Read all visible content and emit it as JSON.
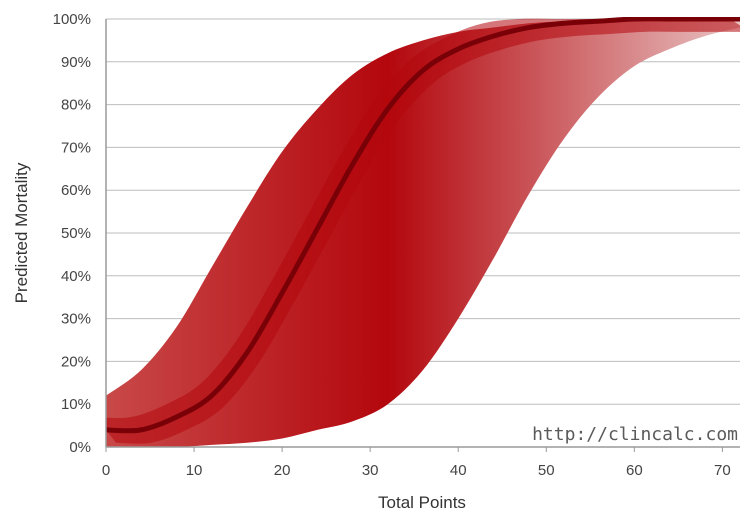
{
  "chart_data": {
    "type": "area",
    "xlabel": "Total Points",
    "ylabel": "Predicted Mortality",
    "xlim": [
      0,
      72
    ],
    "ylim": [
      0,
      100
    ],
    "x_ticks": [
      0,
      10,
      20,
      30,
      40,
      50,
      60,
      70
    ],
    "x_tick_labels": [
      "0",
      "10",
      "20",
      "30",
      "40",
      "50",
      "60",
      "70"
    ],
    "y_ticks": [
      0,
      10,
      20,
      30,
      40,
      50,
      60,
      70,
      80,
      90,
      100
    ],
    "y_tick_labels": [
      "0%",
      "10%",
      "20%",
      "30%",
      "40%",
      "50%",
      "60%",
      "70%",
      "80%",
      "90%",
      "100%"
    ],
    "grid": "horizontal",
    "watermark": "http://clincalc.com",
    "series": [
      {
        "role": "upper_bound",
        "x": [
          0,
          4,
          8,
          12,
          16,
          20,
          24,
          28,
          32,
          36,
          40,
          44,
          48,
          52,
          56,
          60,
          64,
          68,
          72
        ],
        "values": [
          12,
          18,
          28,
          42,
          56,
          69,
          79,
          87,
          92,
          95,
          97,
          98,
          99,
          99.5,
          100,
          100,
          100,
          100,
          100
        ]
      },
      {
        "role": "central_estimate",
        "x": [
          0,
          4,
          8,
          12,
          16,
          20,
          24,
          28,
          32,
          36,
          40,
          44,
          48,
          52,
          56,
          60,
          64,
          68,
          72
        ],
        "values": [
          4,
          4,
          7,
          12,
          22,
          36,
          51,
          66,
          79,
          88,
          93,
          96,
          98,
          99,
          99.5,
          100,
          100,
          100,
          100
        ]
      },
      {
        "role": "lower_bound",
        "x": [
          0,
          4,
          8,
          12,
          16,
          20,
          24,
          28,
          32,
          36,
          40,
          44,
          48,
          52,
          56,
          60,
          64,
          68,
          72
        ],
        "values": [
          0,
          0,
          0,
          0.5,
          1,
          2,
          4,
          6,
          10,
          18,
          30,
          44,
          59,
          72,
          82,
          89,
          93,
          96,
          98
        ]
      }
    ],
    "colors": {
      "band_light": "#e9c3c3",
      "band_mid": "#c94a4a",
      "band_dark": "#b3070d",
      "central_line": "#7a0008",
      "grid": "#bdbdbd",
      "axis": "#9a9a9a"
    }
  }
}
